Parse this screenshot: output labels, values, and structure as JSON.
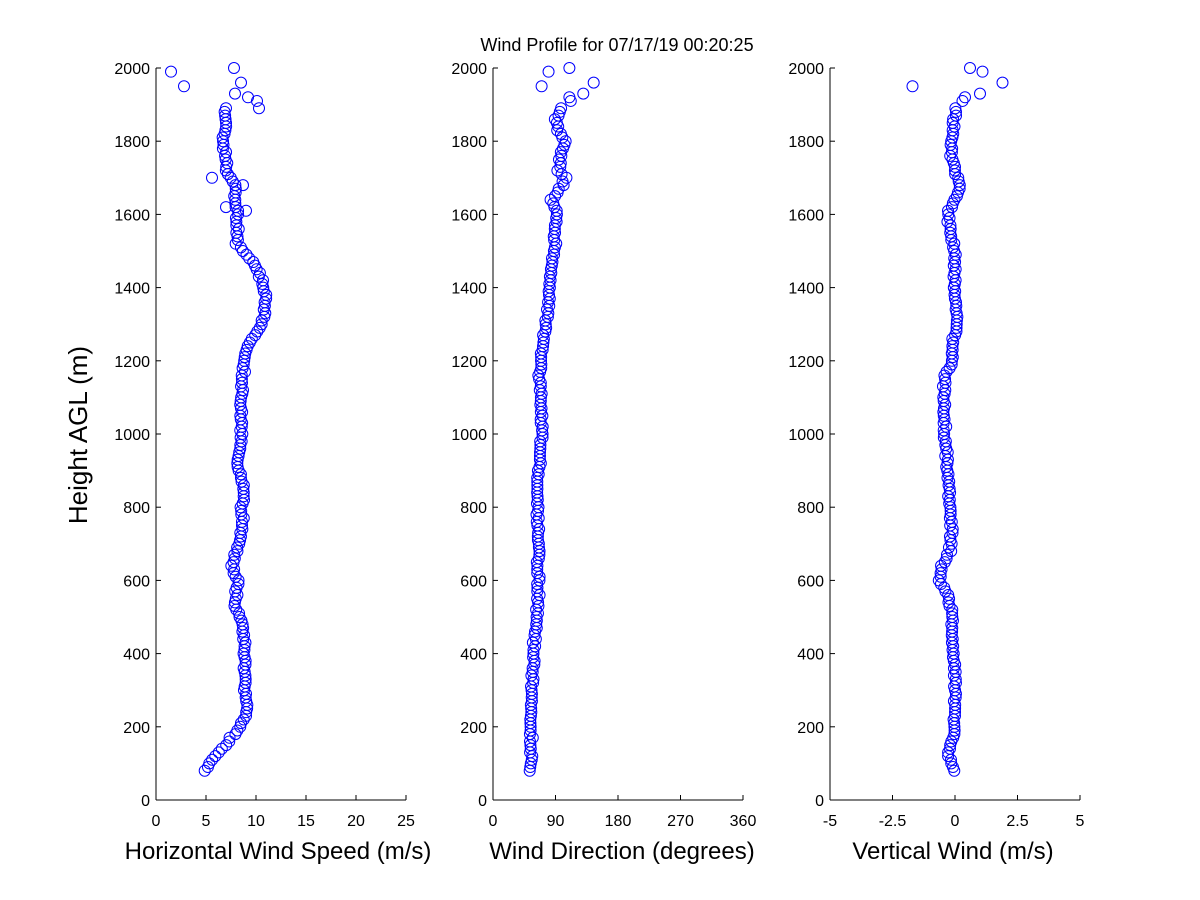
{
  "figure_title": "Wind Profile for  07/17/19 00:20:25",
  "y_axis_label": "Height AGL (m)",
  "colors": {
    "marker": "#0000ff",
    "axis": "#000000",
    "background": "#ffffff"
  },
  "chart_data": [
    {
      "type": "scatter",
      "title": "Horizontal Wind Speed",
      "xlabel": "Horizontal Wind Speed (m/s)",
      "ylabel": "Height AGL (m)",
      "xlim": [
        0,
        25
      ],
      "ylim": [
        0,
        2000
      ],
      "xticks": [
        0,
        5,
        10,
        15,
        20,
        25
      ],
      "xtick_labels": [
        "0",
        "5",
        "10",
        "15",
        "20",
        "25"
      ],
      "yticks": [
        0,
        200,
        400,
        600,
        800,
        1000,
        1200,
        1400,
        1600,
        1800,
        2000
      ],
      "ytick_labels": [
        "0",
        "200",
        "400",
        "600",
        "800",
        "1000",
        "1200",
        "1400",
        "1600",
        "1800",
        "2000"
      ],
      "x_profile": [
        [
          80,
          4.8
        ],
        [
          100,
          5.4
        ],
        [
          120,
          6.0
        ],
        [
          140,
          6.6
        ],
        [
          160,
          7.2
        ],
        [
          180,
          7.8
        ],
        [
          200,
          8.4
        ],
        [
          230,
          8.9
        ],
        [
          260,
          9.1
        ],
        [
          300,
          8.9
        ],
        [
          360,
          8.8
        ],
        [
          420,
          8.9
        ],
        [
          480,
          8.6
        ],
        [
          530,
          7.9
        ],
        [
          560,
          8.0
        ],
        [
          600,
          8.2
        ],
        [
          640,
          7.6
        ],
        [
          680,
          8.0
        ],
        [
          720,
          8.4
        ],
        [
          760,
          8.7
        ],
        [
          800,
          8.6
        ],
        [
          860,
          8.8
        ],
        [
          920,
          8.1
        ],
        [
          980,
          8.5
        ],
        [
          1040,
          8.5
        ],
        [
          1100,
          8.5
        ],
        [
          1160,
          8.7
        ],
        [
          1200,
          8.9
        ],
        [
          1240,
          9.2
        ],
        [
          1270,
          9.9
        ],
        [
          1300,
          10.6
        ],
        [
          1340,
          10.9
        ],
        [
          1380,
          10.9
        ],
        [
          1420,
          10.6
        ],
        [
          1460,
          9.9
        ],
        [
          1490,
          9.0
        ],
        [
          1520,
          8.1
        ],
        [
          1560,
          8.2
        ],
        [
          1600,
          8.1
        ],
        [
          1640,
          8.0
        ],
        [
          1680,
          7.8
        ],
        [
          1720,
          7.0
        ],
        [
          1760,
          7.0
        ],
        [
          1800,
          6.6
        ],
        [
          1840,
          7.1
        ],
        [
          1880,
          7.0
        ]
      ],
      "points_fixed": [
        [
          7.8,
          2000
        ],
        [
          1.5,
          1990
        ],
        [
          8.5,
          1960
        ],
        [
          2.8,
          1950
        ],
        [
          7.9,
          1930
        ],
        [
          9.2,
          1920
        ],
        [
          10.1,
          1910
        ],
        [
          10.3,
          1890
        ],
        [
          5.6,
          1700
        ],
        [
          8.7,
          1680
        ],
        [
          9.0,
          1610
        ],
        [
          7.0,
          1620
        ]
      ],
      "point_spacing_m": 10,
      "point_height_range": [
        80,
        1890
      ]
    },
    {
      "type": "scatter",
      "title": "Wind Direction",
      "xlabel": "Wind Direction (degrees)",
      "ylabel": "Height AGL (m)",
      "xlim": [
        0,
        360
      ],
      "ylim": [
        0,
        2000
      ],
      "xticks": [
        0,
        90,
        180,
        270,
        360
      ],
      "xtick_labels": [
        "0",
        "90",
        "180",
        "270",
        "360"
      ],
      "yticks": [
        0,
        200,
        400,
        600,
        800,
        1000,
        1200,
        1400,
        1600,
        1800,
        2000
      ],
      "ytick_labels": [
        "0",
        "200",
        "400",
        "600",
        "800",
        "1000",
        "1200",
        "1400",
        "1600",
        "1800",
        "2000"
      ],
      "x_profile": [
        [
          80,
          54
        ],
        [
          150,
          55
        ],
        [
          300,
          56
        ],
        [
          450,
          60
        ],
        [
          500,
          63
        ],
        [
          560,
          66
        ],
        [
          620,
          65
        ],
        [
          700,
          65
        ],
        [
          800,
          64
        ],
        [
          900,
          66
        ],
        [
          1000,
          70
        ],
        [
          1100,
          69
        ],
        [
          1160,
          67
        ],
        [
          1200,
          70
        ],
        [
          1260,
          73
        ],
        [
          1330,
          78
        ],
        [
          1400,
          82
        ],
        [
          1460,
          86
        ],
        [
          1520,
          89
        ],
        [
          1560,
          88
        ],
        [
          1600,
          92
        ],
        [
          1640,
          85
        ],
        [
          1680,
          100
        ],
        [
          1700,
          104
        ],
        [
          1720,
          94
        ],
        [
          1760,
          97
        ],
        [
          1800,
          104
        ],
        [
          1830,
          94
        ],
        [
          1860,
          89
        ],
        [
          1880,
          97
        ]
      ],
      "points_fixed": [
        [
          110,
          2000
        ],
        [
          80,
          1990
        ],
        [
          145,
          1960
        ],
        [
          70,
          1950
        ],
        [
          130,
          1930
        ],
        [
          110,
          1920
        ],
        [
          112,
          1910
        ]
      ],
      "point_spacing_m": 10,
      "point_height_range": [
        80,
        1890
      ]
    },
    {
      "type": "scatter",
      "title": "Vertical Wind",
      "xlabel": "Vertical Wind (m/s)",
      "ylabel": "Height AGL (m)",
      "xlim": [
        -5,
        5
      ],
      "ylim": [
        0,
        2000
      ],
      "xticks": [
        -5,
        -2.5,
        0,
        2.5,
        5
      ],
      "xtick_labels": [
        "-5",
        "-2.5",
        "0",
        "2.5",
        "5"
      ],
      "yticks": [
        0,
        200,
        400,
        600,
        800,
        1000,
        1200,
        1400,
        1600,
        1800,
        2000
      ],
      "ytick_labels": [
        "0",
        "200",
        "400",
        "600",
        "800",
        "1000",
        "1200",
        "1400",
        "1600",
        "1800",
        "2000"
      ],
      "x_profile": [
        [
          80,
          0.0
        ],
        [
          100,
          -0.15
        ],
        [
          130,
          -0.3
        ],
        [
          160,
          -0.1
        ],
        [
          200,
          0.0
        ],
        [
          300,
          0.0
        ],
        [
          400,
          -0.05
        ],
        [
          500,
          -0.1
        ],
        [
          560,
          -0.3
        ],
        [
          600,
          -0.65
        ],
        [
          640,
          -0.5
        ],
        [
          680,
          -0.2
        ],
        [
          740,
          -0.15
        ],
        [
          800,
          -0.2
        ],
        [
          900,
          -0.3
        ],
        [
          1000,
          -0.4
        ],
        [
          1100,
          -0.45
        ],
        [
          1160,
          -0.4
        ],
        [
          1200,
          -0.1
        ],
        [
          1260,
          -0.05
        ],
        [
          1300,
          0.1
        ],
        [
          1400,
          0.0
        ],
        [
          1500,
          0.0
        ],
        [
          1560,
          -0.2
        ],
        [
          1600,
          -0.3
        ],
        [
          1640,
          0.0
        ],
        [
          1680,
          0.2
        ],
        [
          1720,
          0.0
        ],
        [
          1760,
          -0.2
        ],
        [
          1800,
          -0.1
        ],
        [
          1840,
          -0.05
        ],
        [
          1880,
          0.0
        ]
      ],
      "points_fixed": [
        [
          0.6,
          2000
        ],
        [
          1.1,
          1990
        ],
        [
          1.9,
          1960
        ],
        [
          -1.7,
          1950
        ],
        [
          1.0,
          1930
        ],
        [
          0.4,
          1920
        ],
        [
          0.3,
          1910
        ]
      ],
      "point_spacing_m": 10,
      "point_height_range": [
        80,
        1890
      ]
    }
  ]
}
